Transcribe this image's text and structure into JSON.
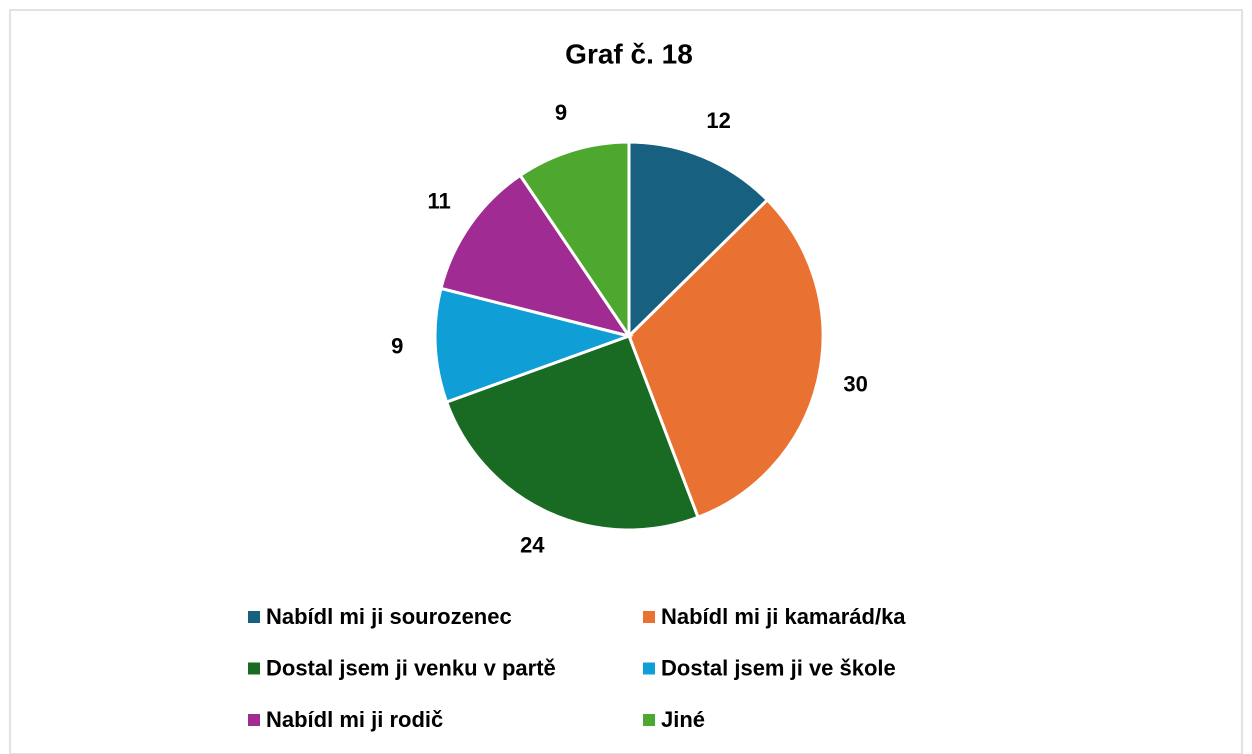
{
  "chart_data": {
    "type": "pie",
    "title": "Graf č. 18",
    "categories": [
      "Nabídl mi ji sourozenec",
      "Nabídl mi ji kamarád/ka",
      "Dostal jsem ji venku v partě",
      "Dostal jsem ji ve škole",
      "Nabídl mi ji rodič",
      "Jiné"
    ],
    "values": [
      12,
      30,
      24,
      9,
      11,
      9
    ],
    "colors": [
      "#17607f",
      "#e97132",
      "#196b24",
      "#0f9ed5",
      "#a02b93",
      "#4ea72e"
    ],
    "legend": "bottom"
  }
}
